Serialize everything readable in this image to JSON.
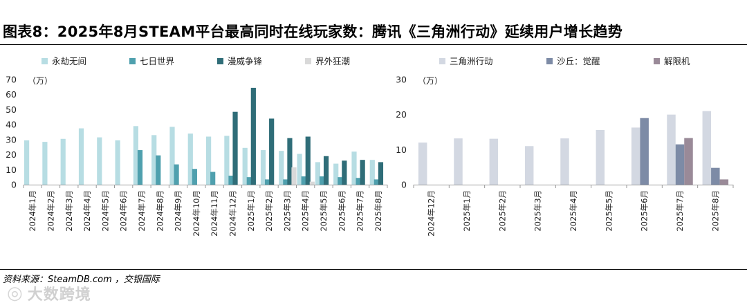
{
  "title": "图表8：2025年8月STEAM平台最高同时在线玩家数：腾讯《三角洲行动》延续用户增长趋势",
  "source": "资料来源：SteamDB.com ，交银国际",
  "watermark": {
    "text": "大数跨境"
  },
  "chart_data": [
    {
      "type": "bar",
      "unit_label": "（万）",
      "ylim": [
        0,
        70
      ],
      "yticks": [
        0,
        10,
        20,
        30,
        40,
        50,
        60,
        70
      ],
      "categories": [
        "2024年1月",
        "2024年2月",
        "2024年3月",
        "2024年4月",
        "2024年5月",
        "2024年6月",
        "2024年7月",
        "2024年8月",
        "2024年9月",
        "2024年10月",
        "2024年11月",
        "2024年12月",
        "2025年1月",
        "2025年2月",
        "2025年3月",
        "2025年4月",
        "2025年5月",
        "2025年6月",
        "2025年7月",
        "2025年8月"
      ],
      "series": [
        {
          "name": "永劫无间",
          "color": "#b7dde3",
          "values": [
            29.5,
            28.5,
            30.5,
            37.5,
            31.5,
            29.5,
            39,
            33,
            38.5,
            34,
            32,
            32.5,
            24.5,
            23,
            22.5,
            20.5,
            15,
            14,
            22,
            16.5
          ]
        },
        {
          "name": "七日世界",
          "color": "#4fa0ae",
          "values": [
            null,
            null,
            null,
            null,
            null,
            null,
            23,
            19.5,
            13.5,
            10.5,
            8.5,
            6,
            5,
            3.5,
            3.5,
            5.5,
            5.5,
            5,
            4.5,
            3.5
          ]
        },
        {
          "name": "漫威争锋",
          "color": "#2f6d78",
          "values": [
            null,
            null,
            null,
            null,
            null,
            null,
            null,
            null,
            null,
            null,
            null,
            48.5,
            64.5,
            44,
            31,
            32,
            19,
            16,
            16.5,
            15
          ]
        },
        {
          "name": "界外狂潮",
          "color": "#d9d9d9",
          "values": [
            null,
            null,
            null,
            null,
            null,
            null,
            null,
            null,
            null,
            null,
            null,
            null,
            null,
            null,
            11.5,
            2,
            null,
            null,
            null,
            null
          ]
        }
      ]
    },
    {
      "type": "bar",
      "unit_label": "（万）",
      "ylim": [
        0,
        30
      ],
      "yticks": [
        0,
        10,
        20,
        30
      ],
      "categories": [
        "2024年12月",
        "2025年1月",
        "2025年2月",
        "2025年3月",
        "2025年4月",
        "2025年5月",
        "2025年6月",
        "2025年7月",
        "2025年8月"
      ],
      "series": [
        {
          "name": "三角洲行动",
          "color": "#d3d8e2",
          "values": [
            12,
            13.2,
            13.1,
            11,
            13.2,
            15.6,
            16.3,
            20,
            21
          ]
        },
        {
          "name": "沙丘：觉醒",
          "color": "#7d8ba6",
          "values": [
            null,
            null,
            null,
            null,
            null,
            null,
            19,
            11.5,
            4.8
          ]
        },
        {
          "name": "解限机",
          "color": "#9a8a98",
          "values": [
            null,
            null,
            null,
            null,
            null,
            null,
            null,
            13.3,
            1.5
          ]
        }
      ]
    }
  ]
}
